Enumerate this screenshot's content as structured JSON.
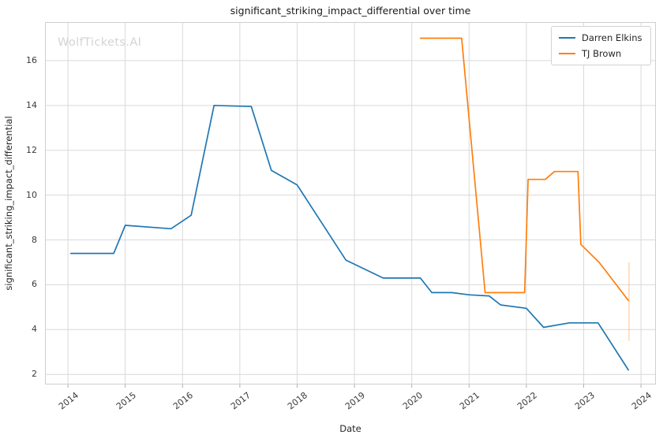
{
  "title": "significant_striking_impact_differential over time",
  "watermark": "WolfTickets.AI",
  "legend": {
    "items": [
      "Darren Elkins",
      "TJ Brown"
    ]
  },
  "chart_data": {
    "type": "line",
    "title": "significant_striking_impact_differential over time",
    "xlabel": "Date",
    "ylabel": "significant_striking_impact_differential",
    "x_ticks": [
      "2014",
      "2015",
      "2016",
      "2017",
      "2018",
      "2019",
      "2020",
      "2021",
      "2022",
      "2023",
      "2024"
    ],
    "y_ticks": [
      2,
      4,
      6,
      8,
      10,
      12,
      14,
      16
    ],
    "xlim": [
      2013.6,
      2024.26
    ],
    "ylim": [
      1.55,
      17.72
    ],
    "grid": true,
    "grid_color": "#d9d9d9",
    "spine_color": "#cfcfcf",
    "legend_position": "upper-right",
    "series": [
      {
        "name": "Darren Elkins",
        "color": "#1f77b4",
        "points": [
          [
            2014.05,
            7.4
          ],
          [
            2014.8,
            7.4
          ],
          [
            2015.0,
            8.65
          ],
          [
            2015.8,
            8.5
          ],
          [
            2016.15,
            9.1
          ],
          [
            2016.55,
            14.0
          ],
          [
            2017.2,
            13.95
          ],
          [
            2017.55,
            11.1
          ],
          [
            2018.0,
            10.45
          ],
          [
            2018.85,
            7.1
          ],
          [
            2019.5,
            6.3
          ],
          [
            2020.15,
            6.3
          ],
          [
            2020.35,
            5.65
          ],
          [
            2020.7,
            5.65
          ],
          [
            2021.0,
            5.55
          ],
          [
            2021.35,
            5.5
          ],
          [
            2021.55,
            5.1
          ],
          [
            2022.0,
            4.95
          ],
          [
            2022.3,
            4.1
          ],
          [
            2022.75,
            4.3
          ],
          [
            2023.25,
            4.3
          ],
          [
            2023.78,
            2.2
          ]
        ]
      },
      {
        "name": "TJ Brown",
        "color": "#ff7f0e",
        "points": [
          [
            2020.15,
            17.0
          ],
          [
            2020.87,
            17.0
          ],
          [
            2021.28,
            5.65
          ],
          [
            2021.97,
            5.65
          ],
          [
            2022.03,
            10.7
          ],
          [
            2022.33,
            10.7
          ],
          [
            2022.49,
            11.05
          ],
          [
            2022.9,
            11.05
          ],
          [
            2022.95,
            7.8
          ],
          [
            2023.27,
            7.0
          ],
          [
            2023.78,
            5.3
          ]
        ],
        "error_bar": {
          "x": 2023.79,
          "y_low": 3.5,
          "y_high": 7.0,
          "opacity": 0.3
        }
      }
    ]
  }
}
